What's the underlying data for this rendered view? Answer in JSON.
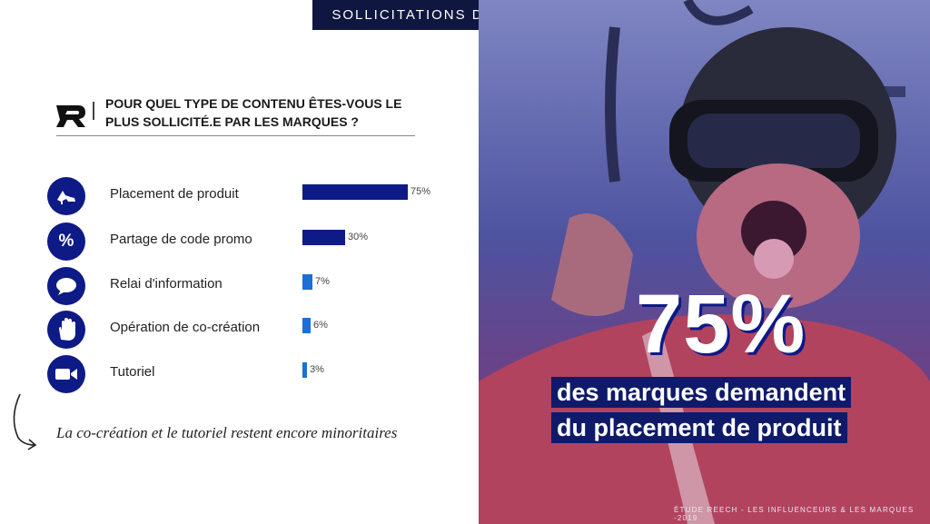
{
  "header": {
    "title": "SOLLICITATIONS DES MARQUES"
  },
  "question": "POUR QUEL TYPE DE CONTENU ÊTES-VOUS LE PLUS SOLLICITÉ.E PAR LES MARQUES ?",
  "chart_data": {
    "type": "bar",
    "orientation": "horizontal",
    "title": "POUR QUEL TYPE DE CONTENU ÊTES-VOUS LE PLUS SOLLICITÉ.E PAR LES MARQUES ?",
    "categories": [
      "Placement de produit",
      "Partage de code promo",
      "Relai d'information",
      "Opération de co-création",
      "Tutoriel"
    ],
    "values": [
      75,
      30,
      7,
      6,
      3
    ],
    "labels": [
      "75%",
      "30%",
      "7%",
      "6%",
      "3%"
    ],
    "icons": [
      "shoe-icon",
      "percent-icon",
      "speech-bubble-icon",
      "hand-icon",
      "video-camera-icon"
    ],
    "xlim": [
      0,
      100
    ],
    "unit": "%"
  },
  "note": "La co-création et le tutoriel restent encore minoritaires",
  "highlight": {
    "value": "75%",
    "line1": "des marques demandent",
    "line2": "du placement de produit"
  },
  "footer": "ÉTUDE REECH - LES INFLUENCEURS & LES MARQUES -2019",
  "colors": {
    "navy": "#0e1a86",
    "dark_navy": "#0f1640",
    "light_blue": "#1c6fd6"
  }
}
